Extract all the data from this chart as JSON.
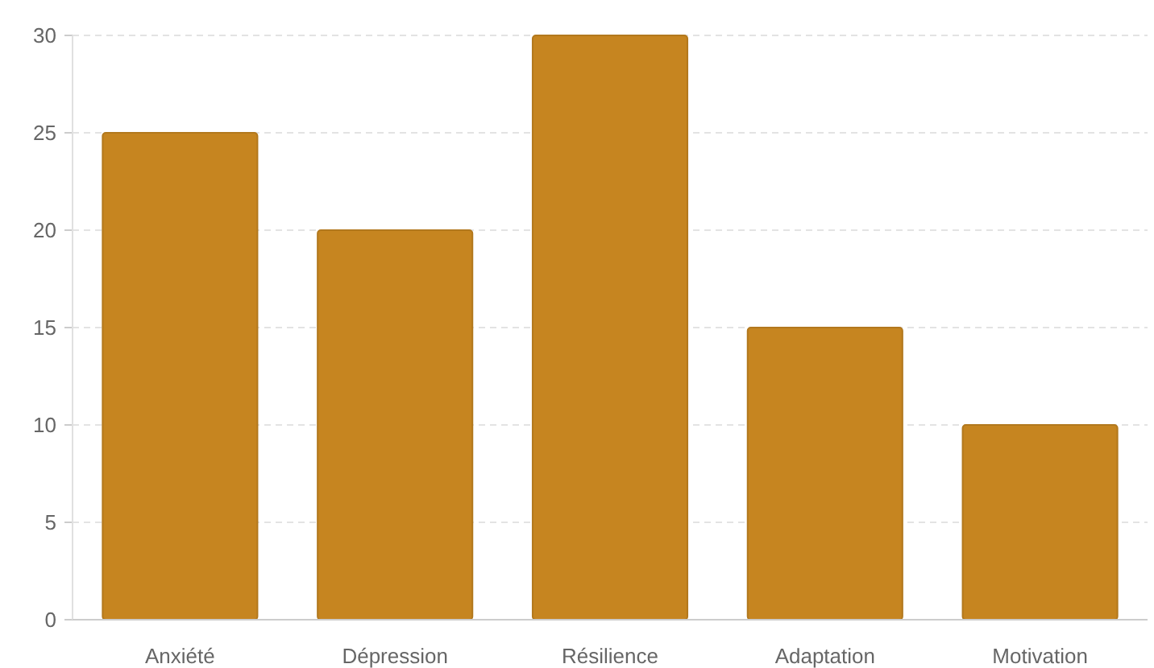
{
  "chart_data": {
    "type": "bar",
    "categories": [
      "Anxiété",
      "Dépression",
      "Résilience",
      "Adaptation",
      "Motivation"
    ],
    "values": [
      25,
      20,
      30,
      15,
      10
    ],
    "color": "#c68520",
    "ylim": [
      0,
      30
    ],
    "yticks": [
      0,
      5,
      10,
      15,
      20,
      25,
      30
    ],
    "grid": "y"
  }
}
